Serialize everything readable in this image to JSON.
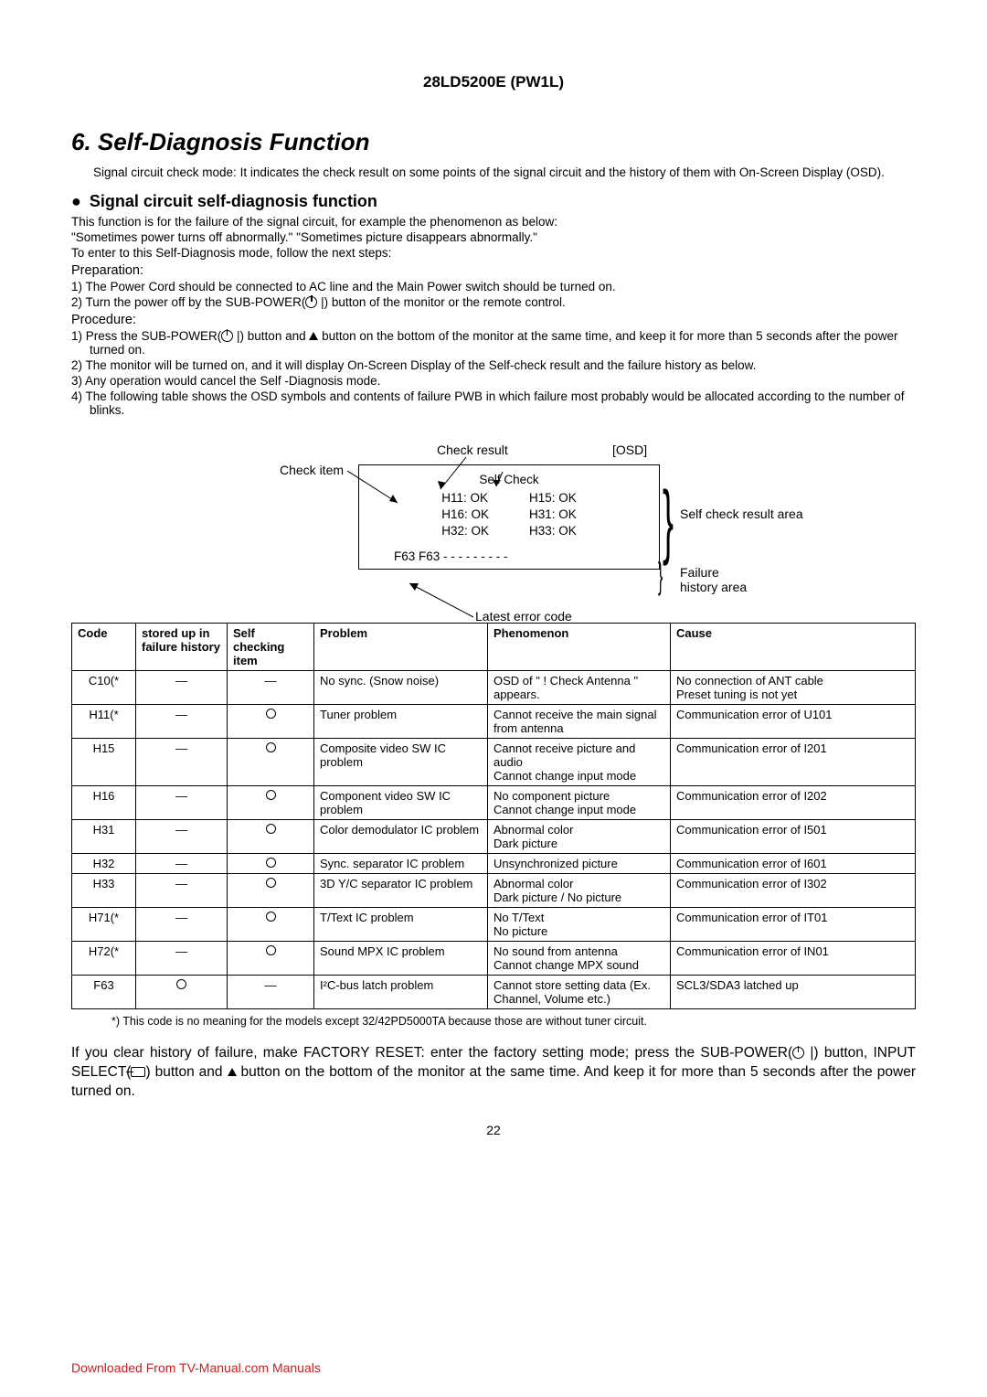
{
  "model": "28LD5200E (PW1L)",
  "section_number": "6.",
  "section_title": "Self-Diagnosis Function",
  "intro": "Signal circuit check mode: It indicates the check result on some points of the signal circuit and the history of them with On-Screen Display (OSD).",
  "subheading": "Signal circuit self-diagnosis function",
  "intro_lines": [
    "This function is for the failure of the signal circuit, for example the phenomenon as below:",
    "\"Sometimes power turns off abnormally.\"  \"Sometimes picture disappears abnormally.\"",
    "To enter to this Self-Diagnosis mode, follow the next steps:"
  ],
  "prep_label": "Preparation:",
  "prep1": "1)  The Power Cord should be connected to AC line and the Main Power switch should be turned on.",
  "prep2a": "2)  Turn the power off by the SUB-POWER(",
  "prep2b": ") button of the monitor or the remote control.",
  "proc_label": "Procedure:",
  "proc1a": "1)  Press the SUB-POWER(",
  "proc1b": ") button and ",
  "proc1c": " button on the bottom of the monitor at the same time, and keep it for more than 5 seconds after the power turned on.",
  "proc2": "2)  The monitor will be turned on, and it will display On-Screen Display of the Self-check result and the failure history as below.",
  "proc3": "3)  Any operation would cancel the Self -Diagnosis mode.",
  "proc4": "4)  The following table shows the OSD symbols and contents of failure PWB in which failure most probably would be allocated according to the number of blinks.",
  "osd": {
    "label_check_result": "Check result",
    "label_osd": "[OSD]",
    "label_check_item": "Check item",
    "inner_title": "Self Check",
    "col1": [
      "H11: OK",
      "H16: OK",
      "H32: OK"
    ],
    "col2": [
      "H15: OK",
      "H31: OK",
      "H33: OK"
    ],
    "fline": "F63    F63    - - -    - - -    - - -",
    "right1": "Self check result area",
    "right2": "Failure history area",
    "latest": "Latest error code"
  },
  "table": {
    "headers": [
      "Code",
      "stored up in failure history",
      "Self checking item",
      "Problem",
      "Phenomenon",
      "Cause"
    ],
    "rows": [
      {
        "code": "C10(*",
        "stored": "—",
        "check": "—",
        "problem": "No sync. (Snow noise)",
        "phenom": "OSD of \" ! Check Antenna \" appears.",
        "cause": "No connection of ANT cable\nPreset tuning is not yet"
      },
      {
        "code": "H11(*",
        "stored": "—",
        "check": "○",
        "problem": "Tuner problem",
        "phenom": "Cannot receive the main signal from antenna",
        "cause": "Communication error of U101"
      },
      {
        "code": "H15",
        "stored": "—",
        "check": "○",
        "problem": "Composite video SW IC problem",
        "phenom": "Cannot receive picture and audio\nCannot change input mode",
        "cause": "Communication error of I201"
      },
      {
        "code": "H16",
        "stored": "—",
        "check": "○",
        "problem": "Component video SW IC problem",
        "phenom": "No component picture\nCannot change input mode",
        "cause": "Communication error of I202"
      },
      {
        "code": "H31",
        "stored": "—",
        "check": "○",
        "problem": "Color demodulator IC problem",
        "phenom": "Abnormal color\nDark picture",
        "cause": "Communication error of I501"
      },
      {
        "code": "H32",
        "stored": "—",
        "check": "○",
        "problem": "Sync. separator IC problem",
        "phenom": "Unsynchronized picture",
        "cause": "Communication error of I601"
      },
      {
        "code": "H33",
        "stored": "—",
        "check": "○",
        "problem": "3D Y/C separator IC problem",
        "phenom": "Abnormal color\nDark picture / No picture",
        "cause": "Communication error of I302"
      },
      {
        "code": "H71(*",
        "stored": "—",
        "check": "○",
        "problem": "T/Text IC problem",
        "phenom": "No T/Text\nNo picture",
        "cause": "Communication error of IT01"
      },
      {
        "code": "H72(*",
        "stored": "—",
        "check": "○",
        "problem": "Sound MPX IC problem",
        "phenom": "No sound from antenna\nCannot change MPX sound",
        "cause": "Communication error of IN01"
      },
      {
        "code": "F63",
        "stored": "○",
        "check": "—",
        "problem": "I²C-bus latch problem",
        "phenom": "Cannot store setting data (Ex. Channel, Volume etc.)",
        "cause": "SCL3/SDA3 latched up"
      }
    ]
  },
  "footnote": "*) This code is no meaning for the models except 32/42PD5000TA because those are without tuner circuit.",
  "clear_a": "If you clear history of failure, make FACTORY RESET: enter the factory setting mode; press the SUB-POWER(",
  "clear_b": ") button, INPUT SELECT(",
  "clear_c": ") button and ",
  "clear_d": " button on the bottom of the monitor at the same time. And keep it for more than 5 seconds after the power turned on.",
  "page_number": "22",
  "download_footer": "Downloaded From TV-Manual.com Manuals"
}
